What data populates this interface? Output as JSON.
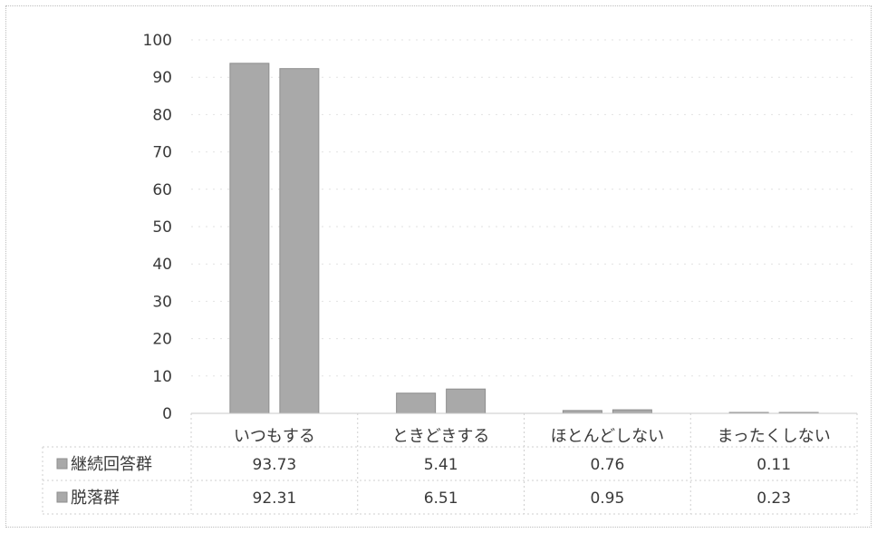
{
  "chart_data": {
    "type": "bar",
    "categories": [
      "いつもする",
      "ときどきする",
      "ほとんどしない",
      "まったくしない"
    ],
    "series": [
      {
        "name": "継続回答群",
        "values": [
          93.73,
          5.41,
          0.76,
          0.11
        ],
        "color": "#a9a9a9"
      },
      {
        "name": "脱落群",
        "values": [
          92.31,
          6.51,
          0.95,
          0.23
        ],
        "color": "#a9a9a9"
      }
    ],
    "title": "",
    "xlabel": "",
    "ylabel": "",
    "ylim": [
      0,
      100
    ],
    "yticks": [
      0,
      10,
      20,
      30,
      40,
      50,
      60,
      70,
      80,
      90,
      100
    ],
    "value_labels": [
      [
        "93.73",
        "5.41",
        "0.76",
        "0.11"
      ],
      [
        "92.31",
        "6.51",
        "0.95",
        "0.23"
      ]
    ],
    "grid": true,
    "legend": "data-table"
  }
}
